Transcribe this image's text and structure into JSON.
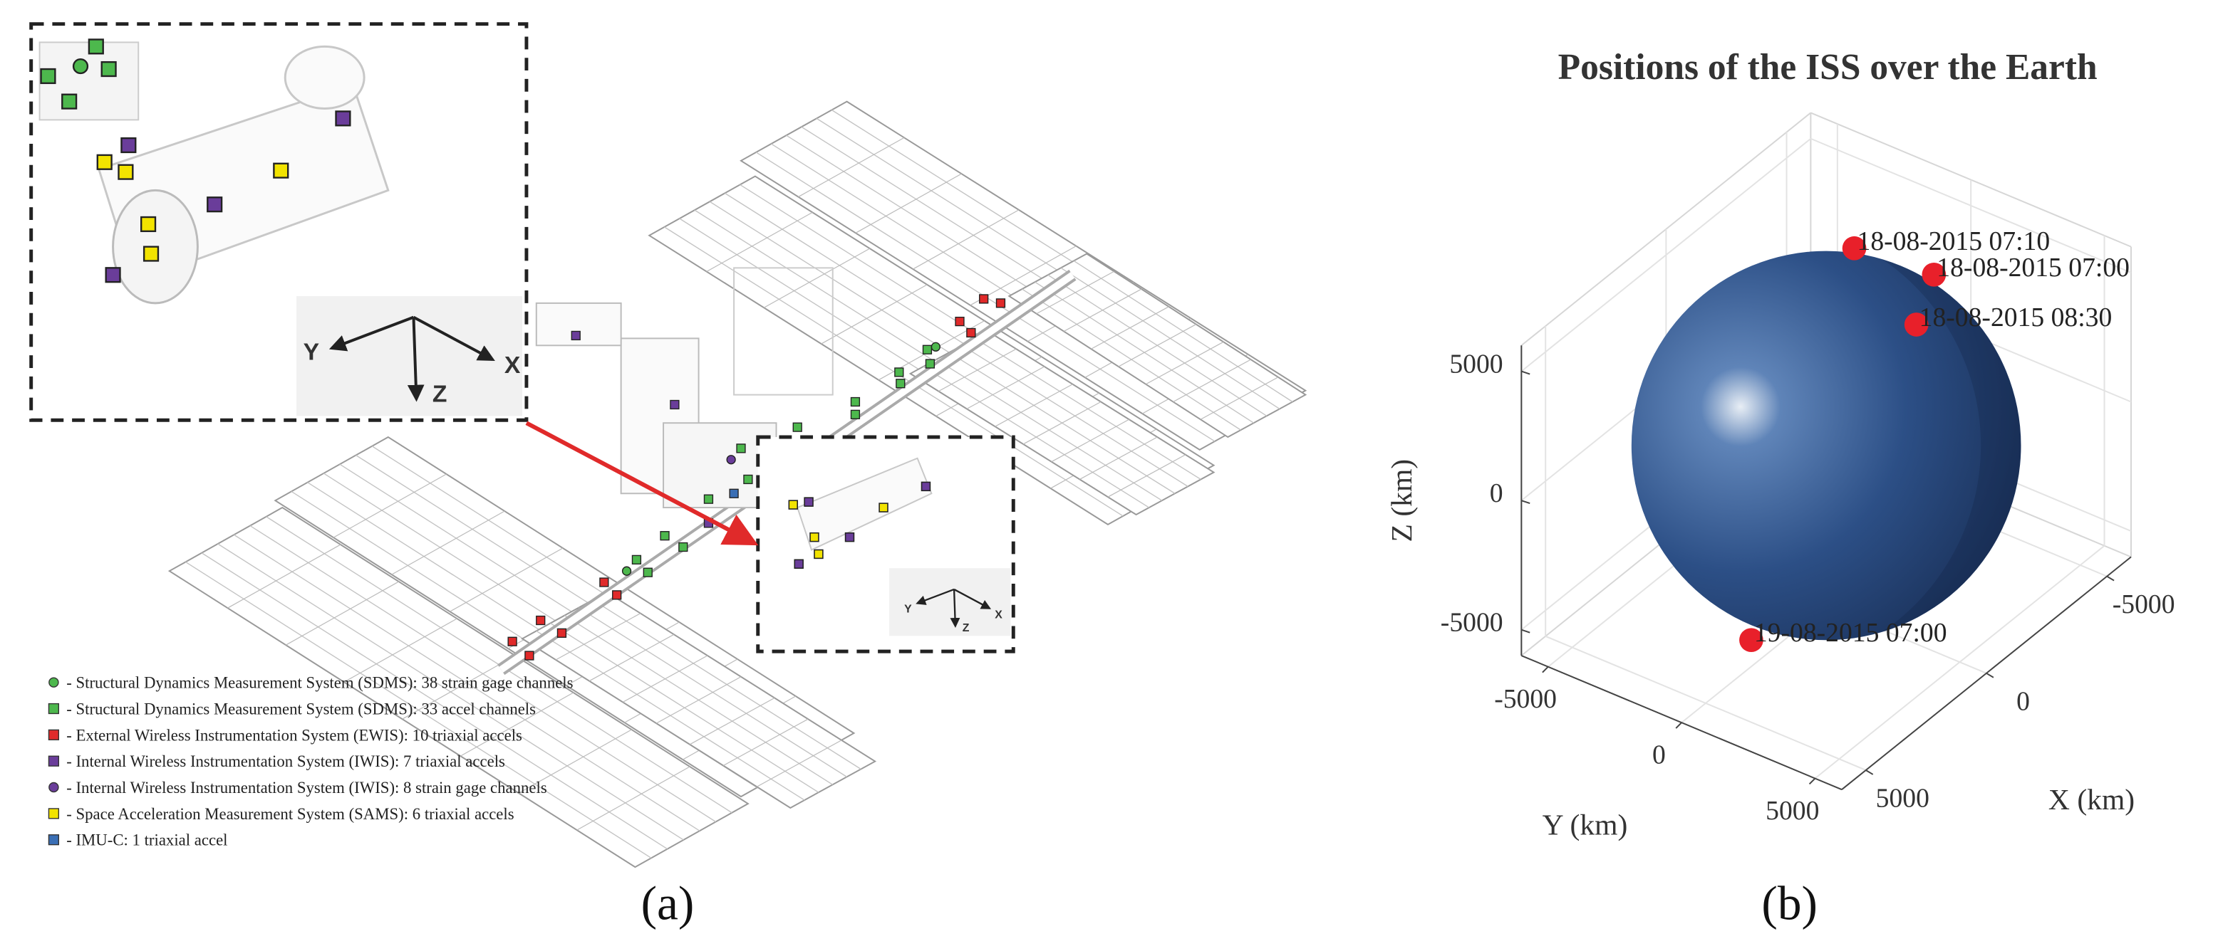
{
  "panel_a": {
    "legend": [
      {
        "label": "- Structural Dynamics Measurement System (SDMS): 38 strain gage channels",
        "color": "#4db84d",
        "shape": "circle"
      },
      {
        "label": "- Structural Dynamics Measurement System (SDMS): 33 accel channels",
        "color": "#4db84d",
        "shape": "square"
      },
      {
        "label": "- External Wireless Instrumentation System (EWIS): 10 triaxial accels",
        "color": "#e02a2a",
        "shape": "square"
      },
      {
        "label": "- Internal Wireless Instrumentation System (IWIS): 7 triaxial accels",
        "color": "#6a3d9a",
        "shape": "square"
      },
      {
        "label": "- Internal Wireless Instrumentation System (IWIS): 8 strain gage channels",
        "color": "#6a3d9a",
        "shape": "circle"
      },
      {
        "label": "- Space Acceleration Measurement System (SAMS): 6 triaxial accels",
        "color": "#f2e300",
        "shape": "square"
      },
      {
        "label": "- IMU-C: 1 triaxial accel",
        "color": "#3a6fb5",
        "shape": "square"
      }
    ],
    "inset_axes_large": {
      "y": "Y",
      "z": "Z",
      "x": "X"
    },
    "inset_axes_small": {
      "y": "Y",
      "z": "Z",
      "x": "X"
    },
    "caption": "(a)"
  },
  "chart_data": {
    "type": "scatter3d",
    "title": "Positions of the ISS over the Earth",
    "xlabel": "X (km)",
    "ylabel": "Y (km)",
    "zlabel": "Z (km)",
    "xlim": [
      -6000,
      6000
    ],
    "ylim": [
      -6000,
      6000
    ],
    "zlim": [
      -6000,
      6000
    ],
    "xticks": [
      -5000,
      0,
      5000
    ],
    "yticks": [
      -5000,
      0,
      5000
    ],
    "zticks": [
      -5000,
      0,
      5000
    ],
    "grid": true,
    "points": {
      "color": "#e8202a",
      "labels": [
        "18-08-2015 07:10",
        "18-08-2015 07:00",
        "18-08-2015 08:30",
        "19-08-2015 07:00"
      ],
      "x": [
        -3600,
        -4800,
        -5400,
        3000
      ],
      "y": [
        -2200,
        -300,
        -1500,
        -100
      ],
      "z": [
        4200,
        3100,
        200,
        -5100
      ]
    }
  },
  "panel_b_caption": "(b)"
}
